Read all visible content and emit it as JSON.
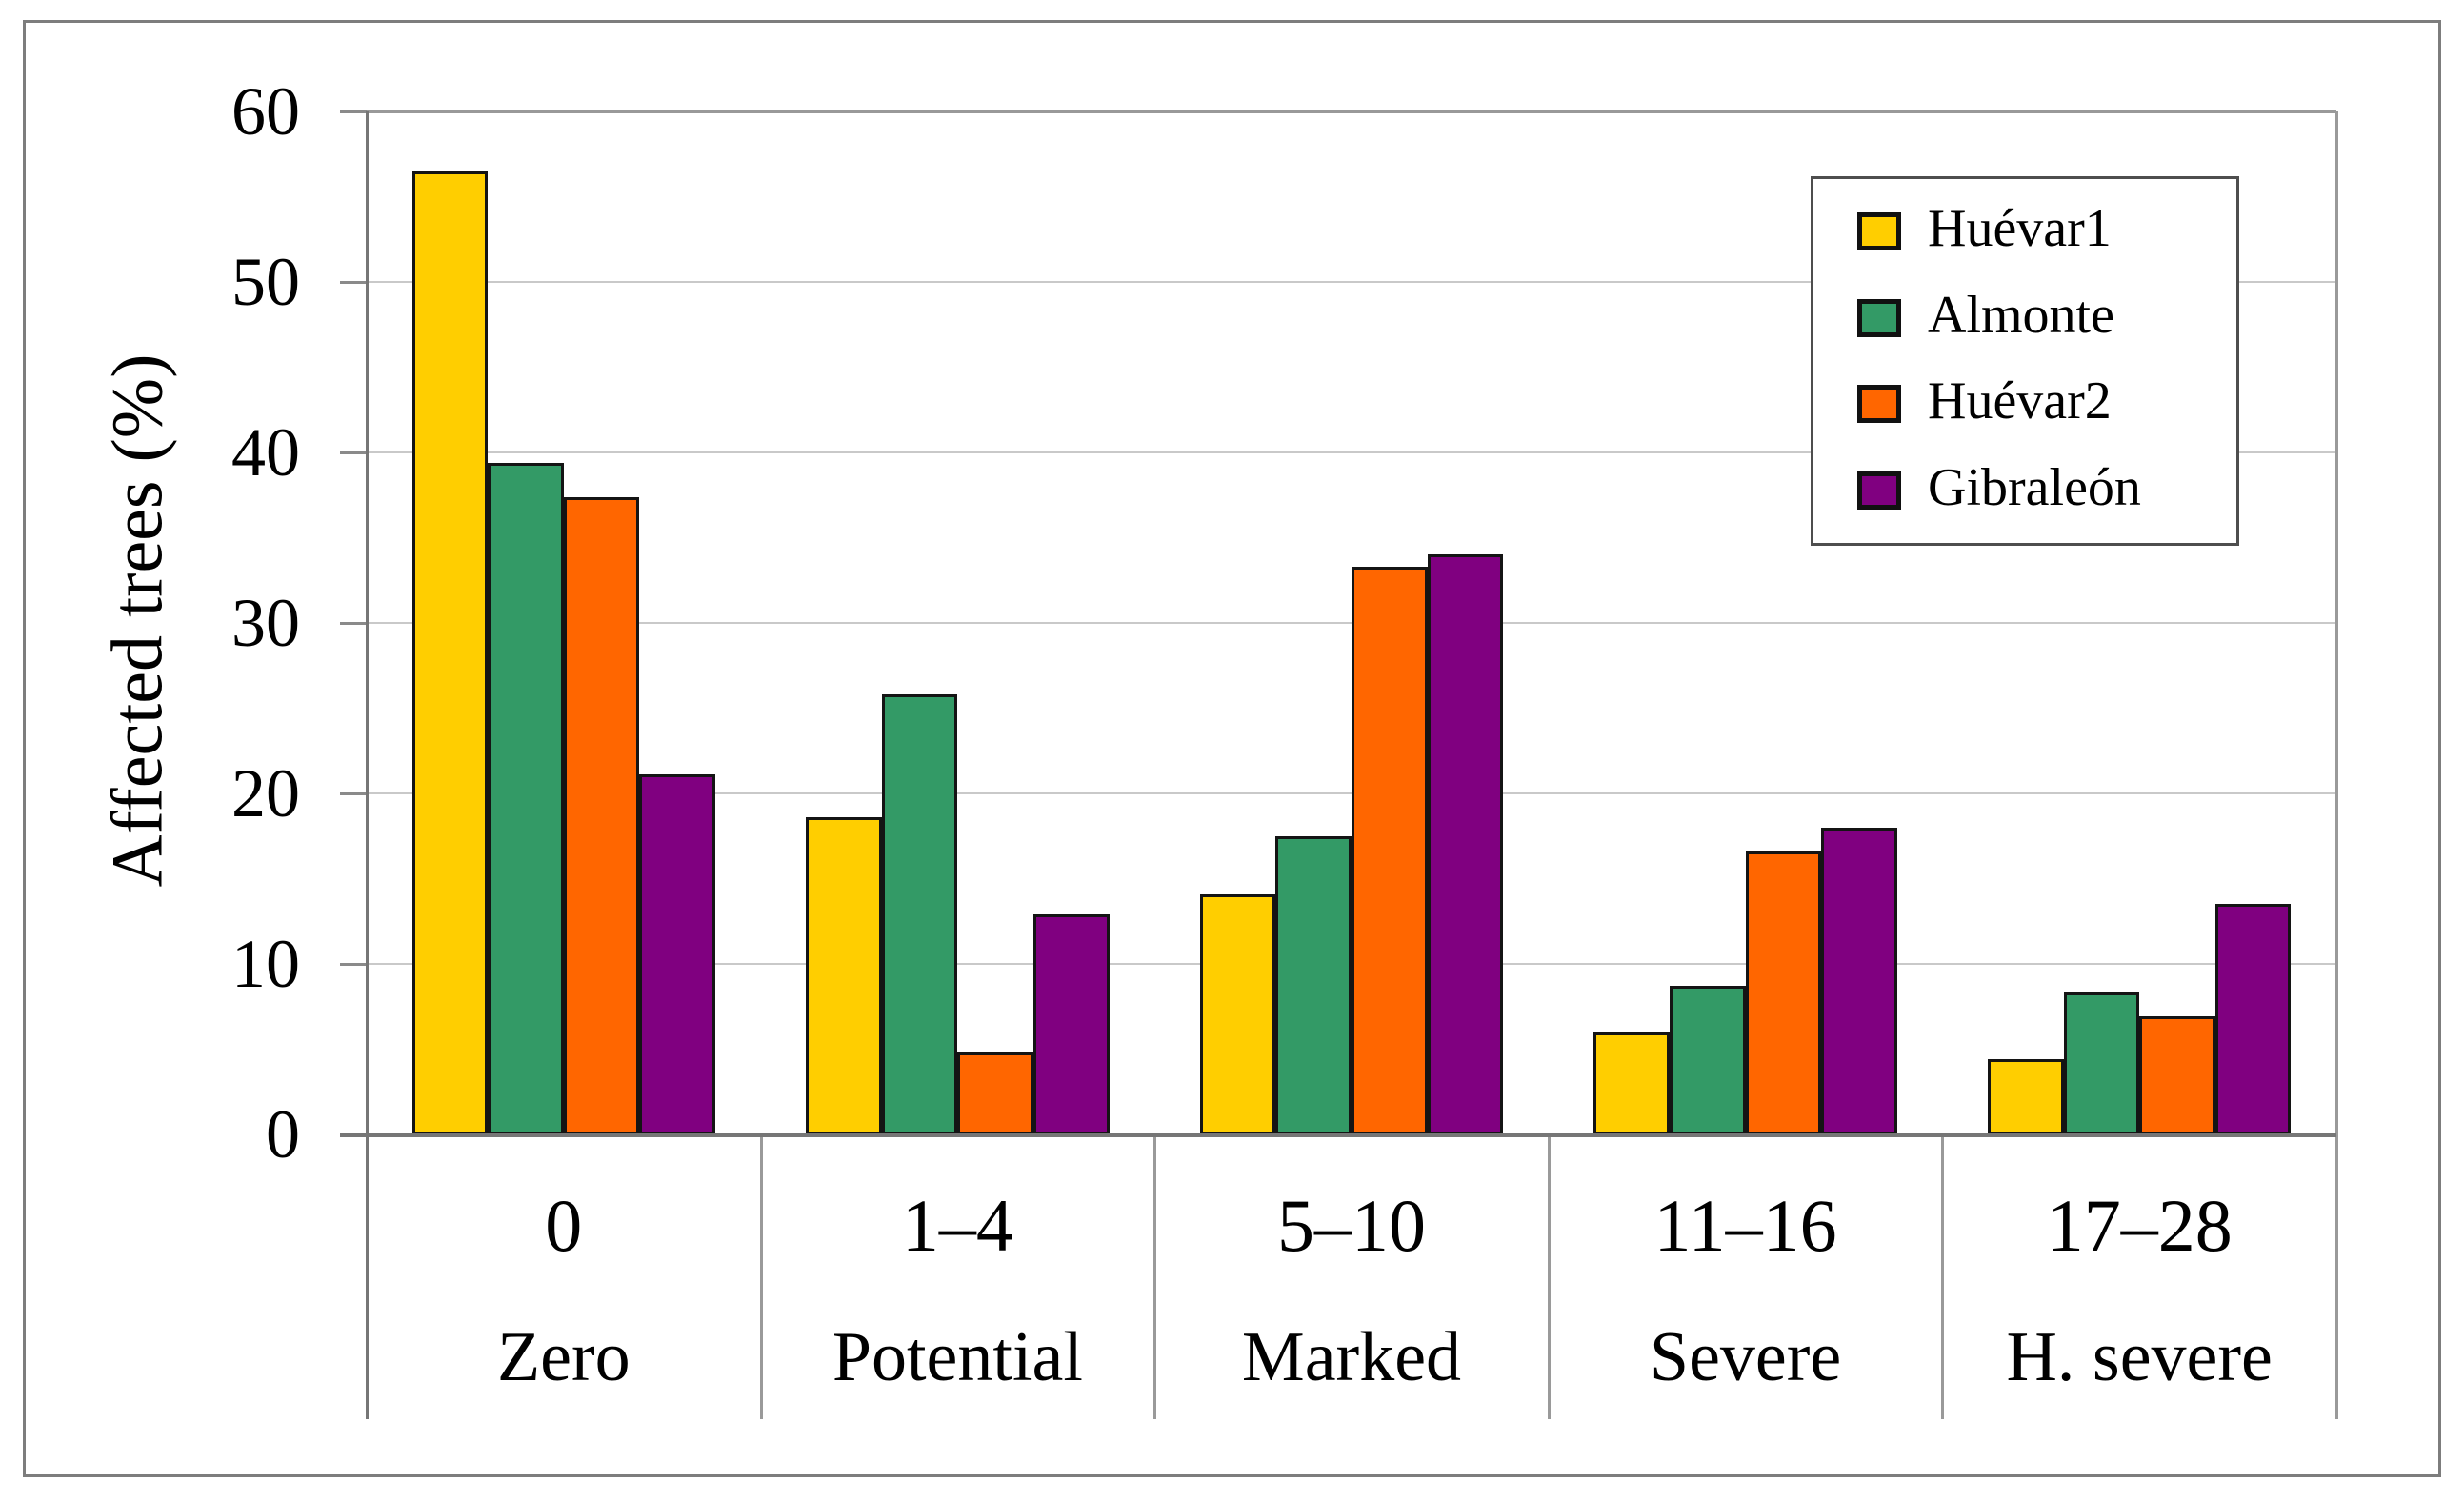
{
  "chart_data": {
    "type": "bar",
    "title": "",
    "xlabel": "",
    "ylabel": "Affected trees (%)",
    "ylim": [
      0,
      60
    ],
    "yticks": [
      0,
      10,
      20,
      30,
      40,
      50,
      60
    ],
    "grid": true,
    "legend_position": "top-right",
    "categories": [
      {
        "range": "0",
        "name": "Zero"
      },
      {
        "range": "1–4",
        "name": "Potential"
      },
      {
        "range": "5–10",
        "name": "Marked"
      },
      {
        "range": "11–16",
        "name": "Severe"
      },
      {
        "range": "17–28",
        "name": "H. severe"
      }
    ],
    "series": [
      {
        "name": "Huévar1",
        "color": "#FFCE00",
        "values": [
          56.5,
          18.6,
          14.1,
          6.0,
          4.4
        ]
      },
      {
        "name": "Almonte",
        "color": "#339A66",
        "values": [
          39.4,
          25.8,
          17.5,
          8.7,
          8.3
        ]
      },
      {
        "name": "Huévar2",
        "color": "#FF6600",
        "values": [
          37.4,
          4.8,
          33.3,
          16.6,
          6.9
        ]
      },
      {
        "name": "Gibraleón",
        "color": "#800080",
        "values": [
          21.1,
          12.9,
          34.0,
          18.0,
          13.5
        ]
      }
    ],
    "colors": {
      "bar_border": "#141414",
      "gridline": "#c9c9c9",
      "axis": "#767676",
      "frame": "#9a9a9a",
      "outer_border": "#7d7d7d",
      "background": "#ffffff"
    }
  }
}
